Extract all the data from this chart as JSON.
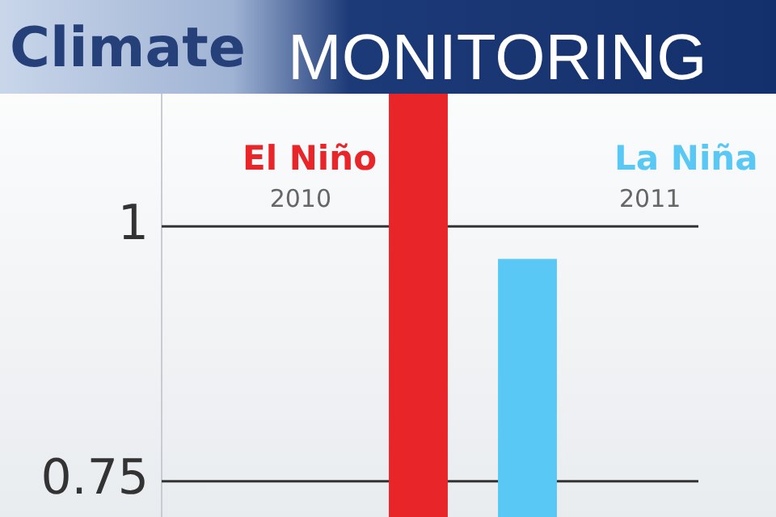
{
  "chart_data": {
    "type": "bar",
    "title": "Climate MONITORING",
    "categories": [
      "El Niño",
      "La Niña"
    ],
    "values": [
      1.13,
      0.968
    ],
    "colors": [
      "#e8262a",
      "#5ac8f5"
    ],
    "annotations": [
      "2010",
      "2011"
    ],
    "ylim": [
      0.715,
      1.13
    ],
    "yticks": [
      0.75,
      1
    ],
    "grid": "y"
  }
}
